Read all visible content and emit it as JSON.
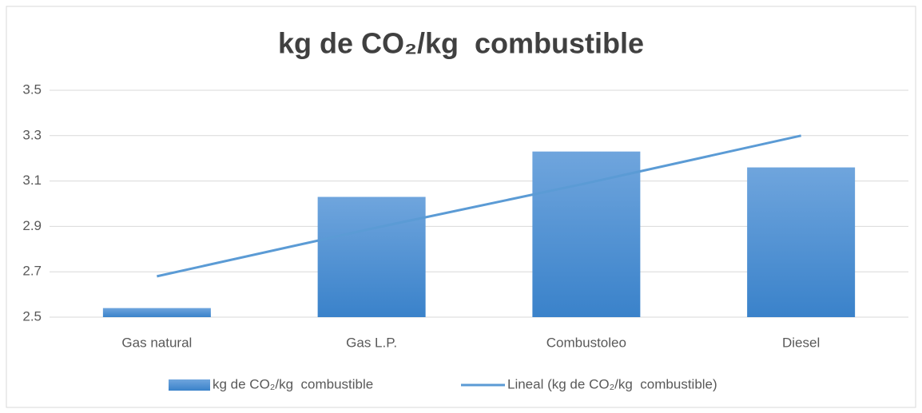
{
  "chart_data": {
    "type": "bar",
    "title": "kg de CO₂/kg  combustible",
    "categories": [
      "Gas natural",
      "Gas L.P.",
      "Combustoleo",
      "Diesel"
    ],
    "series": [
      {
        "name": "kg de CO₂/kg  combustible",
        "type": "bar",
        "color": "#4a8fd6",
        "values": [
          2.54,
          3.03,
          3.23,
          3.16
        ]
      },
      {
        "name": "Lineal (kg de CO₂/kg  combustible)",
        "type": "line",
        "color": "#5b9bd5",
        "values": [
          2.68,
          2.89,
          3.09,
          3.3
        ]
      }
    ],
    "ylim": [
      2.5,
      3.5
    ],
    "yticks": [
      2.5,
      2.7,
      2.9,
      3.1,
      3.3,
      3.5
    ],
    "grid": true,
    "legend": "bottom"
  }
}
